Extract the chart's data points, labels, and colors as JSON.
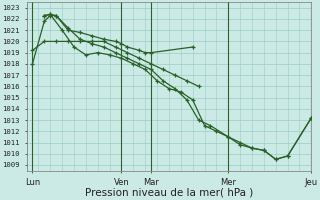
{
  "xlabel": "Pression niveau de la mer( hPa )",
  "ylim_min": 1008.5,
  "ylim_max": 1023.5,
  "yticks": [
    1009,
    1010,
    1011,
    1012,
    1013,
    1014,
    1015,
    1016,
    1017,
    1018,
    1019,
    1020,
    1021,
    1022,
    1023
  ],
  "xlim_min": 0,
  "xlim_max": 24,
  "xtick_positions": [
    0.5,
    8,
    10.5,
    17,
    24
  ],
  "xtick_labels": [
    "Lun",
    "Ven",
    "Mar",
    "Mer",
    "Jeu"
  ],
  "vline_positions": [
    0.5,
    8,
    10.5,
    17,
    24
  ],
  "line_color": "#2a602a",
  "bg_color": "#cceae5",
  "grid_color": "#99ccc5",
  "series": [
    [
      1018.0,
      1021.8,
      1022.3,
      1022.3,
      1021.0,
      1020.8,
      1020.5,
      1020.2,
      1020.0,
      1019.8,
      1019.5,
      1019.2,
      1019.0,
      1019.0,
      1019.5
    ],
    [
      1019.2,
      1020.0,
      1020.0,
      1020.0,
      1020.0,
      1020.0,
      1020.0,
      1019.5,
      1019.0,
      1018.5,
      1018.0,
      1017.5,
      1017.0,
      1016.5,
      1016.0
    ],
    [
      1022.3,
      1022.4,
      1021.0,
      1019.5,
      1018.8,
      1019.0,
      1018.8,
      1018.5,
      1018.0,
      1017.5,
      1016.5,
      1015.8,
      1015.5,
      1014.8,
      1012.5,
      1012.0,
      1011.5,
      1010.8,
      1010.5,
      1010.3,
      1009.5,
      1009.8,
      1013.2
    ],
    [
      1022.3,
      1022.4,
      1022.3,
      1021.2,
      1020.2,
      1019.8,
      1019.5,
      1019.0,
      1018.5,
      1018.0,
      1017.5,
      1016.5,
      1015.8,
      1014.8,
      1013.0,
      1012.5,
      1011.5,
      1011.0,
      1010.5,
      1010.3,
      1009.5,
      1009.8,
      1013.2
    ]
  ],
  "series_x": [
    [
      0.5,
      1.5,
      2.0,
      2.5,
      3.5,
      4.5,
      5.5,
      6.5,
      7.5,
      8.0,
      8.5,
      9.5,
      10.0,
      10.5,
      14.0
    ],
    [
      0.5,
      1.5,
      2.5,
      3.5,
      4.5,
      5.5,
      6.5,
      7.5,
      8.5,
      9.5,
      10.5,
      11.5,
      12.5,
      13.5,
      14.5
    ],
    [
      1.5,
      2.0,
      3.0,
      4.0,
      5.0,
      6.0,
      7.0,
      8.0,
      9.0,
      10.0,
      11.0,
      12.0,
      13.0,
      14.0,
      15.0,
      16.0,
      17.0,
      18.0,
      19.0,
      20.0,
      21.0,
      22.0,
      24.0
    ],
    [
      1.5,
      2.0,
      2.5,
      3.5,
      4.5,
      5.5,
      6.5,
      7.5,
      8.5,
      9.5,
      10.5,
      11.5,
      12.5,
      13.5,
      14.5,
      15.5,
      17.0,
      18.0,
      19.0,
      20.0,
      21.0,
      22.0,
      24.0
    ]
  ]
}
